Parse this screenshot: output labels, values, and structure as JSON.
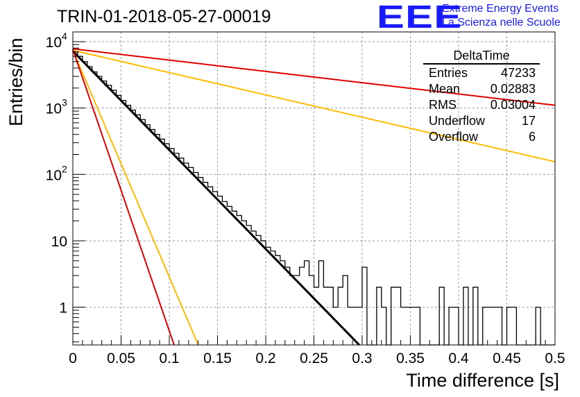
{
  "header": {
    "run_title": "TRIN-01-2018-05-27-00019",
    "logo": "EEE",
    "logo_line1": "Extreme Energy Events",
    "logo_line2": "La Scienza nelle Scuole"
  },
  "stats_box": {
    "title": "DeltaTime",
    "rows": [
      {
        "label": "Entries",
        "value": "47233"
      },
      {
        "label": "Mean",
        "value": "0.02883"
      },
      {
        "label": "RMS",
        "value": "0.03004"
      },
      {
        "label": "Underflow",
        "value": "17"
      },
      {
        "label": "Overflow",
        "value": "6"
      }
    ]
  },
  "colors": {
    "red": "#e00000",
    "orange": "#ffbb00",
    "black": "#000000",
    "grid": "#888888"
  },
  "chart_data": {
    "type": "line",
    "title": "TRIN-01-2018-05-27-00019",
    "xlabel": "Time difference [s]",
    "ylabel": "Entries/bin",
    "xlim": [
      0,
      0.5
    ],
    "ylim": [
      0.27,
      14000
    ],
    "yscale": "log",
    "grid": true,
    "x_ticks": [
      "0",
      "0.05",
      "0.1",
      "0.15",
      "0.2",
      "0.25",
      "0.3",
      "0.35",
      "0.4",
      "0.45",
      "0.5"
    ],
    "y_ticks": [
      {
        "value": 1,
        "label": "1"
      },
      {
        "value": 10,
        "label": "10"
      },
      {
        "value": 100,
        "label": "10",
        "sup": "2"
      },
      {
        "value": 1000,
        "label": "10",
        "sup": "3"
      },
      {
        "value": 10000,
        "label": "10",
        "sup": "4"
      }
    ],
    "histogram": {
      "name": "DeltaTime",
      "bin_width": 0.005,
      "x_start": 0,
      "values": [
        7000,
        6000,
        5000,
        4200,
        3500,
        3000,
        2550,
        2200,
        1850,
        1550,
        1300,
        1100,
        930,
        790,
        670,
        560,
        475,
        400,
        340,
        290,
        245,
        208,
        176,
        148,
        127,
        107,
        90,
        76,
        65,
        55,
        47,
        39,
        33,
        28,
        24,
        20,
        17,
        14,
        12,
        10,
        8,
        7,
        6,
        5,
        4,
        3,
        3,
        4,
        5,
        3,
        2,
        5,
        2,
        2,
        1,
        2,
        3,
        1,
        1,
        1,
        4,
        0,
        0,
        2,
        1,
        0,
        2,
        2,
        1,
        1,
        1,
        1,
        0,
        0,
        0,
        0,
        2,
        0,
        1,
        1,
        0,
        2,
        0,
        2,
        0,
        1,
        1,
        1,
        1,
        0,
        1,
        1,
        0,
        0,
        0,
        0,
        1,
        0,
        0,
        0
      ]
    },
    "series": [
      {
        "color": "black",
        "x": [
          0.0,
          0.297
        ],
        "y": [
          7200,
          0.27
        ]
      },
      {
        "color": "red",
        "x": [
          0.0,
          0.5
        ],
        "y": [
          7800,
          1100
        ]
      },
      {
        "color": "orange",
        "x": [
          0.0,
          0.5
        ],
        "y": [
          7400,
          155
        ]
      },
      {
        "color": "orange",
        "x": [
          0.0,
          0.13
        ],
        "y": [
          7400,
          0.27
        ]
      },
      {
        "color": "red",
        "x": [
          0.0,
          0.105
        ],
        "y": [
          7600,
          0.27
        ]
      }
    ]
  }
}
